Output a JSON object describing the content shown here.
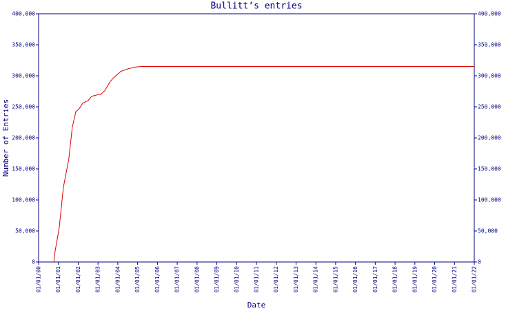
{
  "chart_data": {
    "type": "line",
    "title": "Bullitt’s entries",
    "x_label": "Date",
    "y_label": "Number of Entries",
    "xlim": [
      0,
      22
    ],
    "xticks": [
      {
        "value": 0,
        "label": "01/01/00"
      },
      {
        "value": 1,
        "label": "01/01/01"
      },
      {
        "value": 2,
        "label": "01/01/02"
      },
      {
        "value": 3,
        "label": "01/01/03"
      },
      {
        "value": 4,
        "label": "01/01/04"
      },
      {
        "value": 5,
        "label": "01/01/05"
      },
      {
        "value": 6,
        "label": "01/01/06"
      },
      {
        "value": 7,
        "label": "01/01/07"
      },
      {
        "value": 8,
        "label": "01/01/08"
      },
      {
        "value": 9,
        "label": "01/01/09"
      },
      {
        "value": 10,
        "label": "01/01/10"
      },
      {
        "value": 11,
        "label": "01/01/11"
      },
      {
        "value": 12,
        "label": "01/01/12"
      },
      {
        "value": 13,
        "label": "01/01/13"
      },
      {
        "value": 14,
        "label": "01/01/14"
      },
      {
        "value": 15,
        "label": "01/01/15"
      },
      {
        "value": 16,
        "label": "01/01/16"
      },
      {
        "value": 17,
        "label": "01/01/17"
      },
      {
        "value": 18,
        "label": "01/01/18"
      },
      {
        "value": 19,
        "label": "01/01/19"
      },
      {
        "value": 20,
        "label": "01/01/20"
      },
      {
        "value": 21,
        "label": "01/01/21"
      },
      {
        "value": 22,
        "label": "01/01/22"
      }
    ],
    "ylim": [
      0,
      400000
    ],
    "yticks": [
      0,
      {
        "value": 50000,
        "label": "50,000"
      },
      {
        "value": 100000,
        "label": "100,000"
      },
      {
        "value": 150000,
        "label": "150,000"
      },
      {
        "value": 200000,
        "label": "200,000"
      },
      {
        "value": 250000,
        "label": "250,000"
      },
      {
        "value": 300000,
        "label": "300,000"
      },
      {
        "value": 350000,
        "label": "350,000"
      },
      {
        "value": 400000,
        "label": "400,000"
      }
    ],
    "x": [
      0.77,
      0.83,
      1.04,
      1.25,
      1.53,
      1.7,
      1.88,
      2.05,
      2.23,
      2.5,
      2.68,
      2.92,
      3.13,
      3.34,
      3.62,
      3.79,
      4.14,
      4.49,
      4.84,
      5.19,
      22
    ],
    "series": [
      {
        "color": "#dd0000",
        "values": [
          0,
          16700,
          55000,
          120000,
          167000,
          217000,
          242000,
          247000,
          256000,
          260000,
          267000,
          269000,
          270000,
          276000,
          291000,
          297000,
          307000,
          311000,
          314000,
          315000,
          315000
        ]
      }
    ],
    "axis_color": "#000080"
  }
}
